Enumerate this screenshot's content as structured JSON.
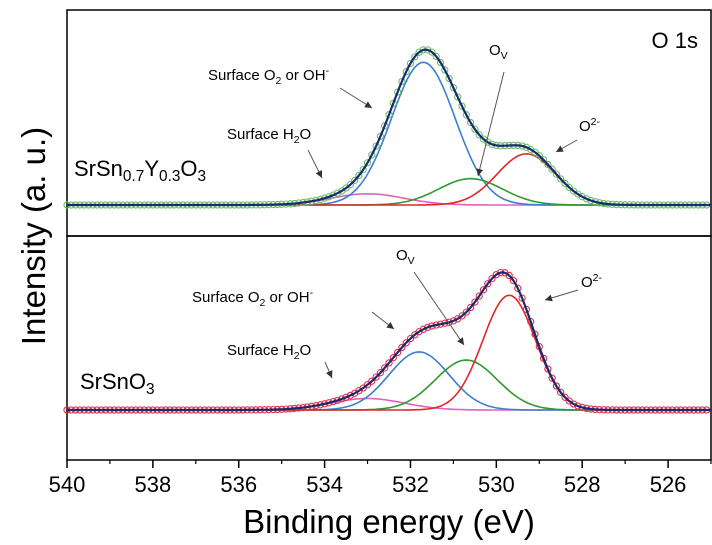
{
  "chart_data": {
    "type": "line",
    "xlabel": "Binding energy (eV)",
    "ylabel": "Intensity (a. u.)",
    "x_range": [
      540,
      525
    ],
    "x_ticks": [
      540,
      538,
      536,
      534,
      532,
      530,
      528,
      526
    ],
    "x_tick_labels": [
      "540",
      "538",
      "536",
      "534",
      "532",
      "530",
      "528",
      "526"
    ],
    "core_level": "O 1s",
    "panels": [
      {
        "sample": {
          "base": "SrSn",
          "sub1": "0.7",
          "mid": "Y",
          "sub2": "0.3",
          "end": "O",
          "sub3": "3"
        },
        "ylim": [
          0,
          1.18
        ],
        "background": 0.0,
        "marker_color": "#6bbf6b",
        "components": [
          {
            "label": "Surface H2O",
            "center": 533.0,
            "fwhm": 2.0,
            "height": 0.072,
            "color": "#e060c0"
          },
          {
            "label": "Surface O2 or OH-",
            "center": 531.7,
            "fwhm": 1.75,
            "height": 0.92,
            "color": "#3a7fd0"
          },
          {
            "label": "OV",
            "center": 530.6,
            "fwhm": 1.75,
            "height": 0.17,
            "color": "#2e9a2e"
          },
          {
            "label": "O2-",
            "center": 529.3,
            "fwhm": 1.6,
            "height": 0.33,
            "color": "#e02828"
          }
        ],
        "annotations": {
          "h2o": {
            "base": "Surface H",
            "sub": "2",
            "end": "O"
          },
          "oh": {
            "base": "Surface O",
            "sub": "2",
            "mid": " or OH",
            "sup": "-"
          },
          "ov": {
            "base": "O",
            "sub": "V"
          },
          "o2": {
            "base": "O",
            "sup": "2-"
          }
        }
      },
      {
        "sample": {
          "base": "SrSnO",
          "sub1": "3"
        },
        "ylim": [
          0,
          1.2
        ],
        "background": 0.0,
        "marker_color": "#e0304a",
        "components": [
          {
            "label": "Surface H2O",
            "center": 533.0,
            "fwhm": 2.0,
            "height": 0.085,
            "color": "#e060c0"
          },
          {
            "label": "Surface O2 or OH-",
            "center": 531.8,
            "fwhm": 1.65,
            "height": 0.43,
            "color": "#3a7fd0"
          },
          {
            "label": "OV",
            "center": 530.7,
            "fwhm": 1.7,
            "height": 0.37,
            "color": "#2e9a2e"
          },
          {
            "label": "O2-",
            "center": 529.7,
            "fwhm": 1.45,
            "height": 0.85,
            "color": "#e02828"
          }
        ],
        "annotations": {
          "h2o": {
            "base": "Surface H",
            "sub": "2",
            "end": "O"
          },
          "oh": {
            "base": "Surface O",
            "sub": "2",
            "mid": " or OH",
            "sup": "-"
          },
          "ov": {
            "base": "O",
            "sub": "V"
          },
          "o2": {
            "base": "O",
            "sup": "2-"
          }
        }
      }
    ],
    "fit_color": "#1a2a6e"
  }
}
